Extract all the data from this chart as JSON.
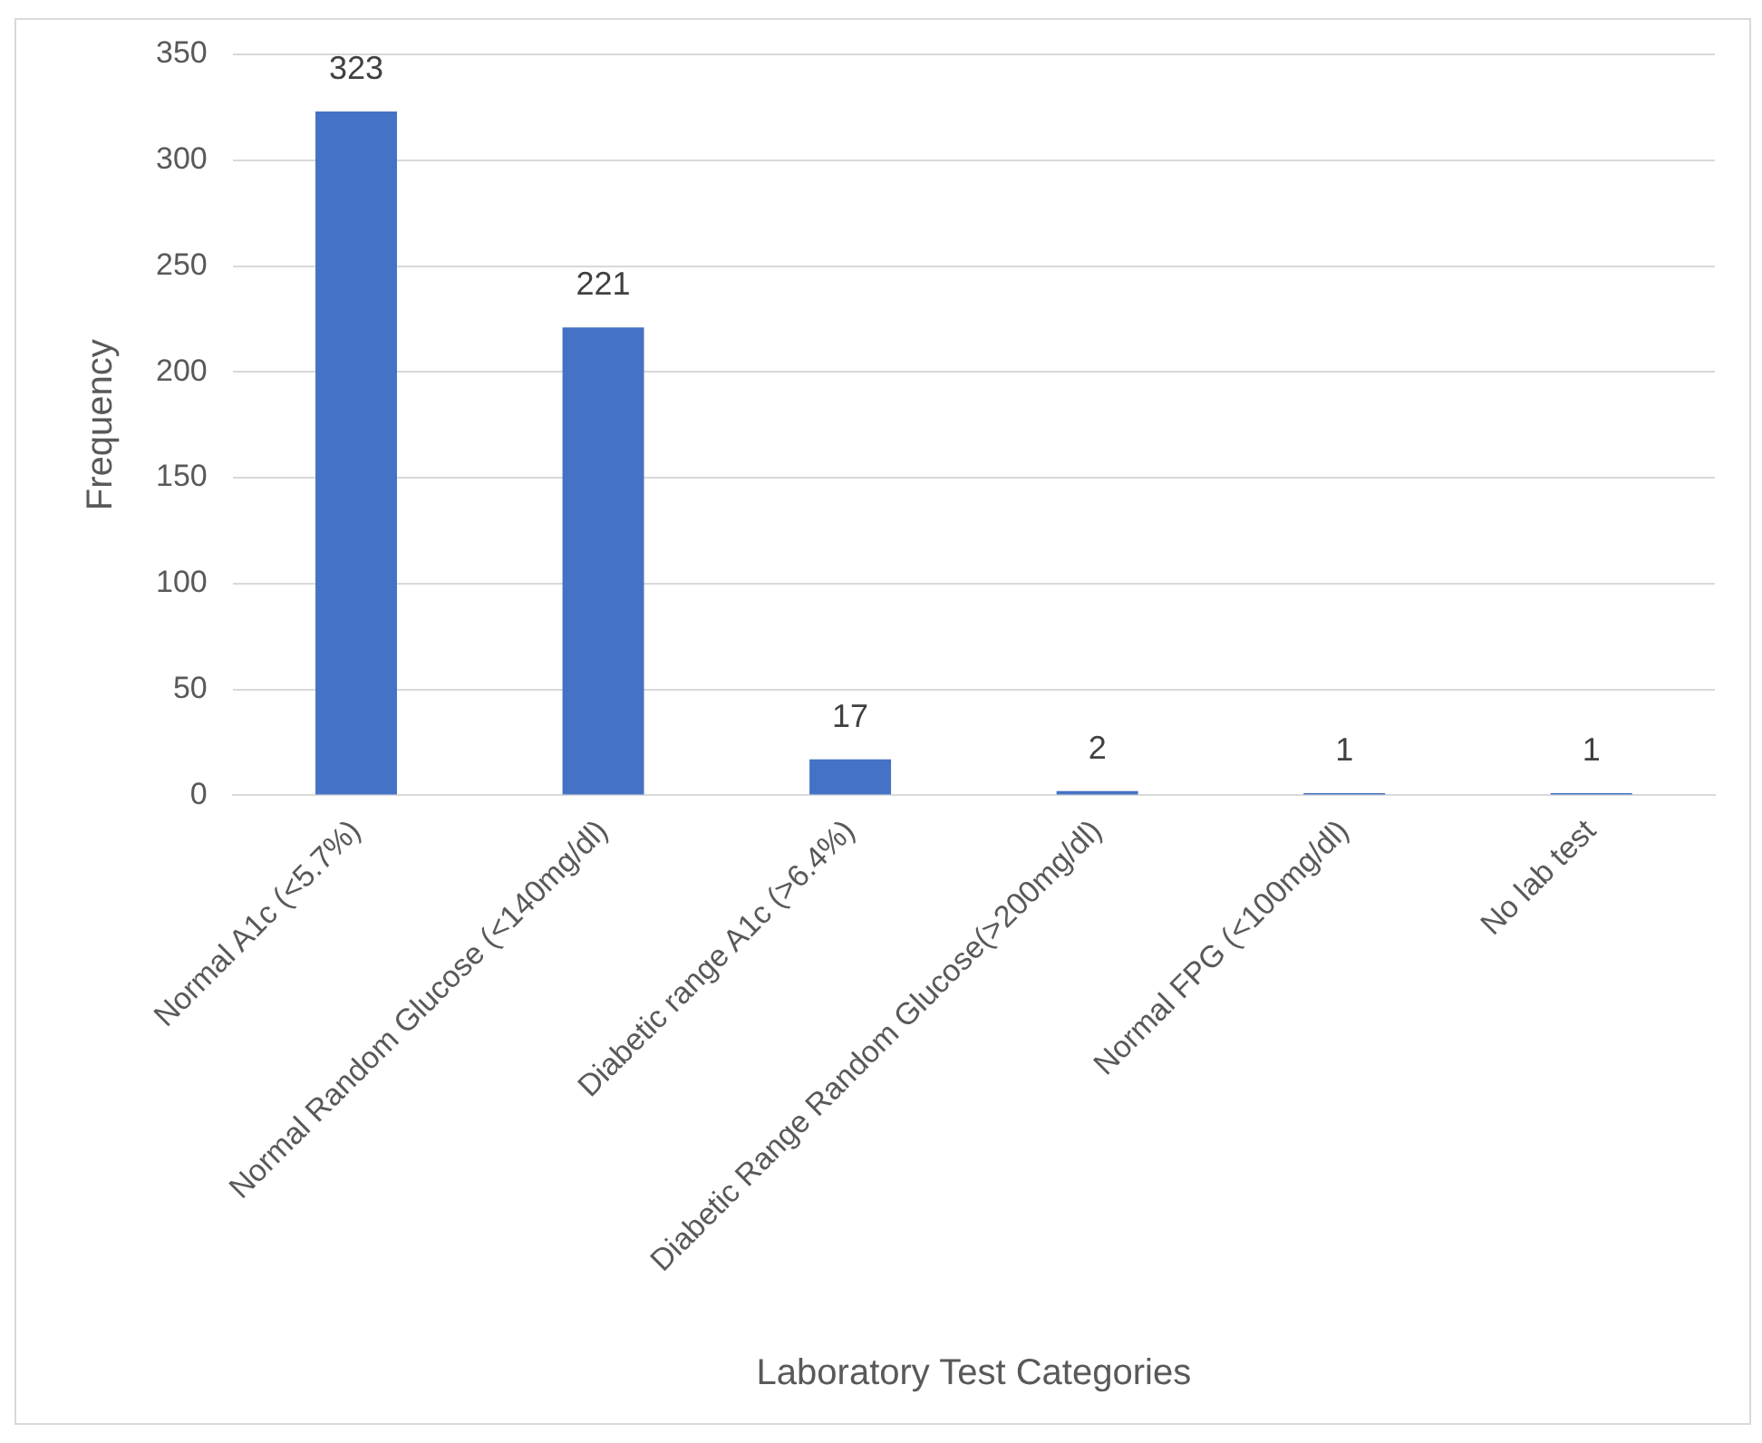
{
  "chart_data": {
    "type": "bar",
    "xlabel": "Laboratory Test Categories",
    "ylabel": "Frequency",
    "categories": [
      "Normal A1c (<5.7%)",
      "Normal Random Glucose (<140mg/dl)",
      "Diabetic range A1c (>6.4%)",
      "Diabetic Range Random Glucose(>200mg/dl)",
      "Normal FPG (<100mg/dl)",
      "No lab test"
    ],
    "values": [
      323,
      221,
      17,
      2,
      1,
      1
    ],
    "color": "#4472c4",
    "ylim": [
      0,
      350
    ],
    "yticks": [
      0,
      50,
      100,
      150,
      200,
      250,
      300,
      350
    ],
    "grid": "y",
    "data_labels": true
  }
}
